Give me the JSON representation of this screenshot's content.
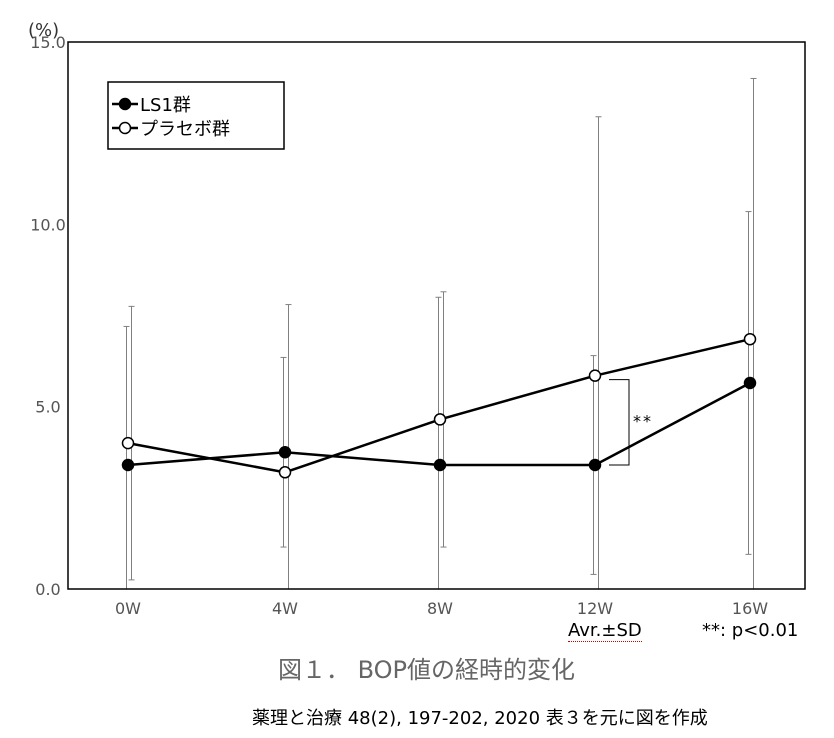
{
  "chart_data": {
    "type": "line",
    "categories": [
      "0W",
      "4W",
      "8W",
      "12W",
      "16W"
    ],
    "y_unit_label": "(%)",
    "ylim": [
      0,
      15
    ],
    "yticks": [
      "0.0",
      "5.0",
      "10.0",
      "15.0"
    ],
    "ytick_values": [
      0,
      5,
      10,
      15
    ],
    "series": [
      {
        "name": "LS1群",
        "marker": "filled-circle",
        "values": [
          3.4,
          3.75,
          3.4,
          3.4,
          5.65
        ],
        "sd": [
          3.8,
          2.6,
          4.6,
          3.0,
          4.7
        ]
      },
      {
        "name": "プラセボ群",
        "marker": "open-circle",
        "values": [
          4.0,
          3.2,
          4.65,
          5.85,
          6.85
        ],
        "sd": [
          3.75,
          4.6,
          3.5,
          7.1,
          7.15
        ]
      }
    ],
    "annotation": {
      "text": "**",
      "between_category": "12W"
    },
    "grid": false,
    "legend_position": "top-left"
  },
  "notes": {
    "avr_sd": "Avr.±SD",
    "significance": "**: p<0.01"
  },
  "caption": "図１． BOP値の経時的変化",
  "source": "薬理と治療 48(2), 197-202, 2020 表３を元に図を作成",
  "colors": {
    "line": "#000000",
    "errorbar": "#808080",
    "axis": "#000000"
  }
}
